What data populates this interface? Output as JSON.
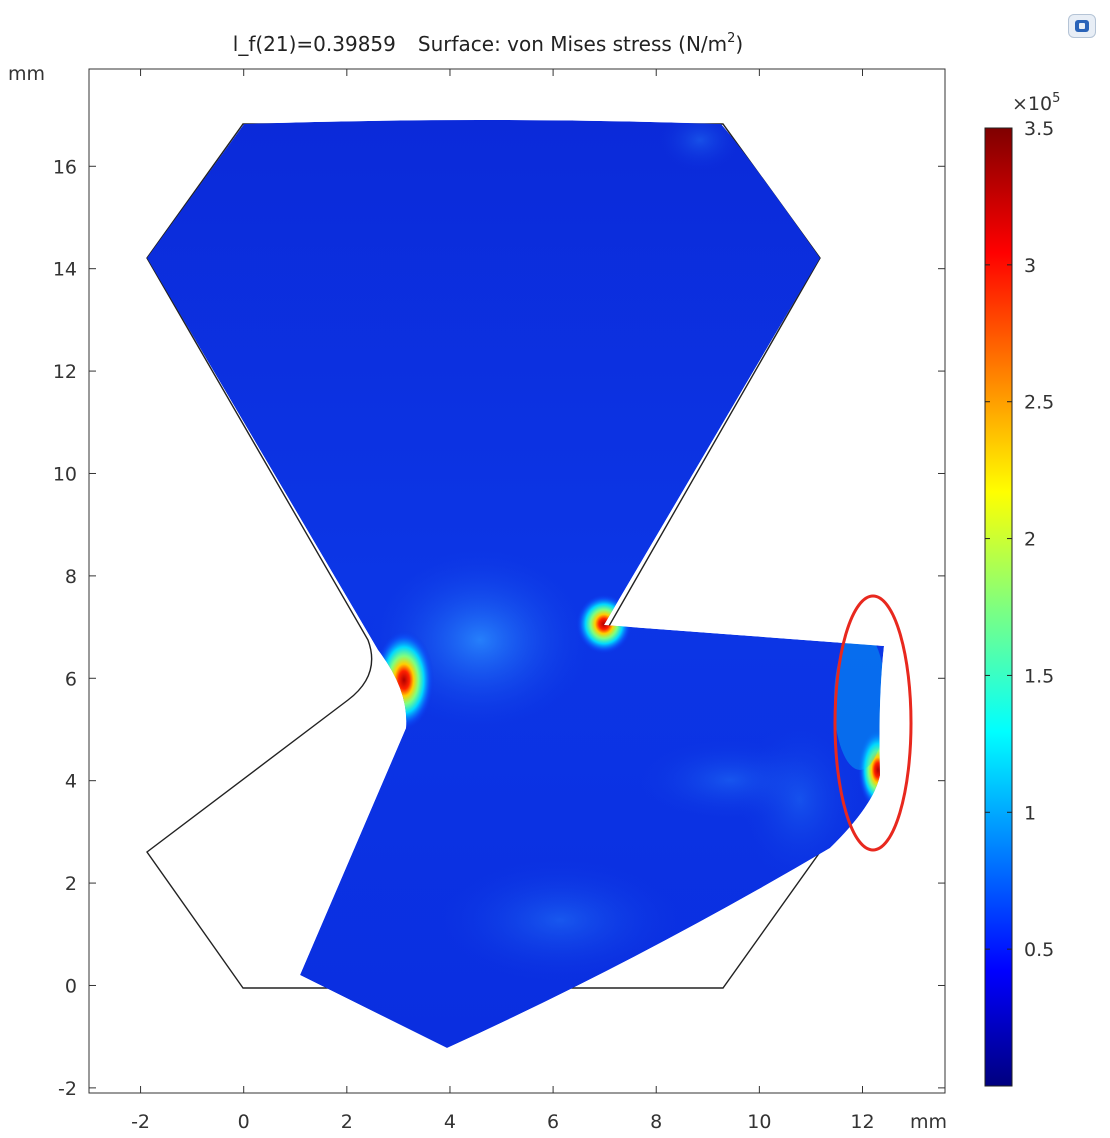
{
  "plot": {
    "title_param": "l_f(21)=0.39859",
    "title_surface_prefix": "Surface: von Mises stress (N/m",
    "title_surface_sup": "2",
    "title_surface_suffix": ")",
    "y_unit": "mm",
    "x_unit": "mm",
    "x_ticks": [
      "-2",
      "0",
      "2",
      "4",
      "6",
      "8",
      "10",
      "12"
    ],
    "y_ticks": [
      "-2",
      "0",
      "2",
      "4",
      "6",
      "8",
      "10",
      "12",
      "14",
      "16"
    ],
    "x_range_mm": [
      -3.0,
      13.6
    ],
    "y_range_mm": [
      -2.1,
      17.9
    ]
  },
  "colorbar": {
    "multiplier_base": "×10",
    "multiplier_exp": "5",
    "ticks": [
      "3.5",
      "3",
      "2.5",
      "2",
      "1.5",
      "1",
      "0.5"
    ],
    "range": [
      0,
      3.5
    ],
    "colormap": "rainbow-jet"
  },
  "annotation": {
    "color": "#e8281e",
    "shape": "ellipse",
    "target": "right-edge-stress-region"
  },
  "toolbar": {
    "corner_icon": "graphics-window-icon"
  }
}
